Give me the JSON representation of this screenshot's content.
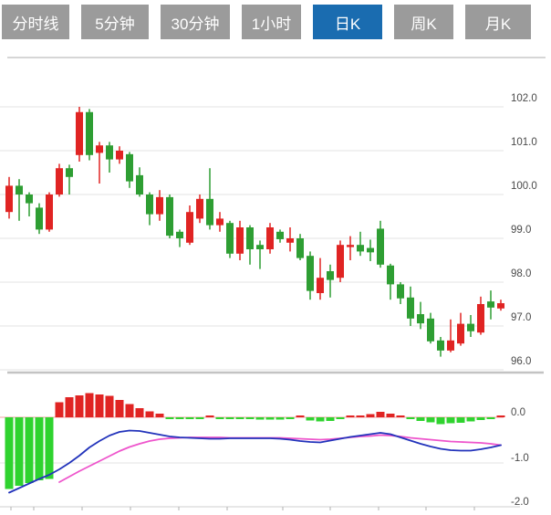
{
  "tabs": {
    "items": [
      {
        "label": "分时线",
        "active": false
      },
      {
        "label": "5分钟",
        "active": false
      },
      {
        "label": "30分钟",
        "active": false
      },
      {
        "label": "1小时",
        "active": false
      },
      {
        "label": "日K",
        "active": true
      },
      {
        "label": "周K",
        "active": false
      },
      {
        "label": "月K",
        "active": false
      }
    ],
    "active_bg": "#1a6cb0",
    "inactive_bg": "#9b9b9b",
    "text_color": "#ffffff"
  },
  "chart_data": {
    "type": "candlestick+macd",
    "grid": true,
    "legend": "none",
    "colors": {
      "candle_up": "#e02423",
      "candle_down": "#2e9e33",
      "macd_bar_up": "#e02423",
      "macd_bar_down": "#2fd32f",
      "dif_line": "#2233bb",
      "dea_line": "#ee55cc",
      "zero_line": "#f0a0a0",
      "grid_line": "#e3e3e3",
      "border_line": "#c9c9c9",
      "axis_text": "#4a4a4a"
    },
    "price_panel": {
      "y_ticks": [
        102.0,
        101.0,
        100.0,
        99.0,
        98.0,
        97.0,
        96.0
      ],
      "ylim": [
        95.8,
        102.2
      ],
      "candles": {
        "format": [
          "open",
          "high",
          "low",
          "close"
        ],
        "up_rule": "close>=open is red (up), close<open is green (down)",
        "values": [
          [
            99.6,
            100.4,
            99.45,
            100.2
          ],
          [
            100.2,
            100.35,
            99.4,
            100.0
          ],
          [
            100.0,
            100.05,
            99.5,
            99.8
          ],
          [
            99.7,
            99.8,
            99.1,
            99.2
          ],
          [
            99.2,
            100.05,
            99.15,
            100.0
          ],
          [
            100.0,
            100.7,
            99.95,
            100.6
          ],
          [
            100.6,
            100.68,
            100.0,
            100.4
          ],
          [
            100.9,
            102.0,
            100.75,
            101.88
          ],
          [
            101.88,
            101.95,
            100.78,
            100.9
          ],
          [
            100.95,
            101.2,
            100.25,
            101.12
          ],
          [
            101.12,
            101.2,
            100.5,
            100.8
          ],
          [
            100.8,
            101.1,
            100.7,
            101.0
          ],
          [
            100.92,
            100.97,
            100.15,
            100.3
          ],
          [
            100.44,
            100.62,
            99.95,
            100.0
          ],
          [
            100.0,
            100.05,
            99.3,
            99.55
          ],
          [
            99.55,
            100.1,
            99.4,
            99.94
          ],
          [
            99.94,
            100.0,
            99.0,
            99.06
          ],
          [
            99.15,
            99.2,
            98.8,
            99.0
          ],
          [
            98.9,
            99.75,
            98.85,
            99.6
          ],
          [
            99.45,
            100.0,
            99.35,
            99.9
          ],
          [
            99.9,
            100.6,
            99.2,
            99.3
          ],
          [
            99.3,
            99.6,
            99.15,
            99.45
          ],
          [
            99.35,
            99.4,
            98.55,
            98.65
          ],
          [
            98.65,
            99.4,
            98.5,
            99.25
          ],
          [
            99.25,
            99.3,
            98.4,
            98.75
          ],
          [
            98.85,
            98.95,
            98.3,
            98.75
          ],
          [
            98.75,
            99.35,
            98.65,
            99.25
          ],
          [
            99.15,
            99.2,
            98.9,
            98.98
          ],
          [
            98.9,
            99.25,
            98.7,
            99.0
          ],
          [
            99.0,
            99.1,
            98.5,
            98.55
          ],
          [
            98.6,
            98.7,
            97.6,
            97.8
          ],
          [
            97.75,
            98.55,
            97.6,
            98.1
          ],
          [
            98.25,
            98.4,
            97.65,
            98.05
          ],
          [
            98.1,
            98.95,
            98.0,
            98.85
          ],
          [
            98.8,
            99.05,
            98.5,
            98.85
          ],
          [
            98.85,
            99.15,
            98.6,
            98.7
          ],
          [
            98.78,
            98.97,
            98.48,
            98.68
          ],
          [
            99.22,
            99.4,
            98.33,
            98.4
          ],
          [
            98.38,
            98.42,
            97.6,
            97.95
          ],
          [
            97.95,
            98.0,
            97.5,
            97.63
          ],
          [
            97.65,
            97.9,
            97.0,
            97.17
          ],
          [
            97.27,
            97.55,
            96.93,
            97.06
          ],
          [
            97.17,
            97.3,
            96.6,
            96.65
          ],
          [
            96.67,
            96.75,
            96.3,
            96.44
          ],
          [
            96.44,
            97.15,
            96.4,
            96.67
          ],
          [
            96.6,
            97.3,
            96.55,
            97.05
          ],
          [
            97.05,
            97.25,
            96.75,
            96.88
          ],
          [
            96.85,
            97.67,
            96.8,
            97.5
          ],
          [
            97.56,
            97.81,
            97.15,
            97.42
          ],
          [
            97.4,
            97.6,
            97.35,
            97.52
          ]
        ]
      }
    },
    "macd_panel": {
      "y_ticks": [
        0.0,
        -1.0,
        -2.0
      ],
      "ylim": [
        -2.1,
        0.6
      ],
      "histogram": [
        -1.57,
        -1.5,
        -1.44,
        -1.38,
        -1.35,
        0.33,
        0.44,
        0.48,
        0.53,
        0.5,
        0.47,
        0.38,
        0.29,
        0.2,
        0.13,
        0.08,
        -0.03,
        -0.04,
        -0.03,
        -0.03,
        0.02,
        -0.03,
        -0.04,
        -0.03,
        -0.04,
        -0.05,
        -0.05,
        -0.05,
        -0.04,
        0.02,
        -0.07,
        -0.09,
        -0.08,
        -0.03,
        0.02,
        0.04,
        0.07,
        0.12,
        0.08,
        0.03,
        -0.04,
        -0.08,
        -0.11,
        -0.15,
        -0.13,
        -0.12,
        -0.09,
        -0.06,
        -0.04,
        0.04
      ],
      "dif": [
        -1.65,
        -1.55,
        -1.45,
        -1.35,
        -1.26,
        -1.14,
        -1.0,
        -0.84,
        -0.66,
        -0.52,
        -0.4,
        -0.32,
        -0.29,
        -0.3,
        -0.34,
        -0.38,
        -0.42,
        -0.44,
        -0.45,
        -0.46,
        -0.47,
        -0.47,
        -0.46,
        -0.46,
        -0.46,
        -0.46,
        -0.46,
        -0.47,
        -0.49,
        -0.52,
        -0.54,
        -0.55,
        -0.51,
        -0.47,
        -0.43,
        -0.4,
        -0.37,
        -0.34,
        -0.37,
        -0.44,
        -0.51,
        -0.58,
        -0.64,
        -0.69,
        -0.72,
        -0.73,
        -0.73,
        -0.7,
        -0.66,
        -0.61
      ],
      "dea": [
        null,
        null,
        null,
        null,
        null,
        -1.42,
        -1.3,
        -1.18,
        -1.07,
        -0.96,
        -0.85,
        -0.74,
        -0.65,
        -0.58,
        -0.52,
        -0.48,
        -0.46,
        -0.45,
        -0.44,
        -0.44,
        -0.44,
        -0.44,
        -0.45,
        -0.45,
        -0.45,
        -0.45,
        -0.45,
        -0.45,
        -0.46,
        -0.47,
        -0.48,
        -0.49,
        -0.48,
        -0.46,
        -0.44,
        -0.42,
        -0.41,
        -0.39,
        -0.4,
        -0.42,
        -0.45,
        -0.47,
        -0.49,
        -0.51,
        -0.53,
        -0.54,
        -0.55,
        -0.56,
        -0.58,
        -0.61
      ]
    }
  }
}
